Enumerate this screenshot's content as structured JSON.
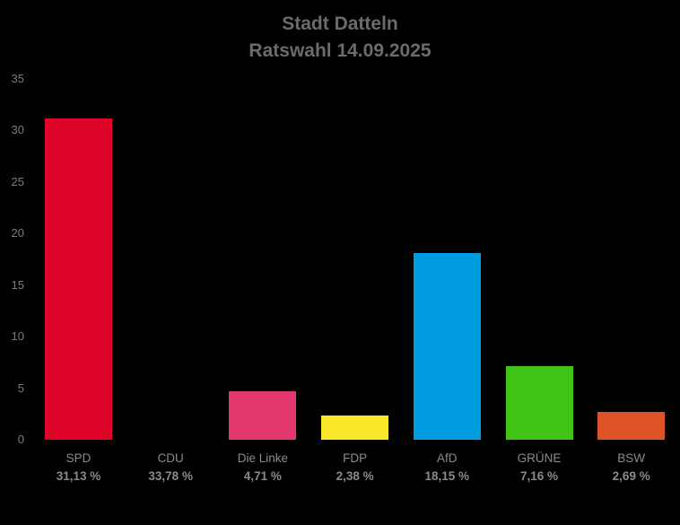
{
  "background_color": "#000000",
  "title": {
    "line1": "Stadt Datteln",
    "line2": "Ratswahl 14.09.2025",
    "color": "#6b6b6b"
  },
  "axis": {
    "tick_color": "#7d7d7d",
    "category_label_color": "#8a8a8a",
    "grid_visible": false
  },
  "chart_data": {
    "type": "bar",
    "title": "Stadt Datteln",
    "subtitle": "Ratswahl 14.09.2025",
    "categories": [
      "SPD",
      "CDU",
      "Die Linke",
      "FDP",
      "AfD",
      "GRÜNE",
      "BSW"
    ],
    "values": [
      31.13,
      33.78,
      4.71,
      2.38,
      18.15,
      7.16,
      2.69
    ],
    "value_labels": [
      "31,13 %",
      "33,78 %",
      "4,71 %",
      "2,38 %",
      "18,15 %",
      "7,16 %",
      "2,69 %"
    ],
    "bar_colors": [
      "#de0428",
      "#000000",
      "#e2386e",
      "#fae92a",
      "#009ee0",
      "#40c416",
      "#dd5226"
    ],
    "xlabel": "",
    "ylabel": "",
    "ylim": [
      0,
      35
    ],
    "yticks": [
      0,
      5,
      10,
      15,
      20,
      25,
      30,
      35
    ],
    "grid": false,
    "legend": "none"
  }
}
